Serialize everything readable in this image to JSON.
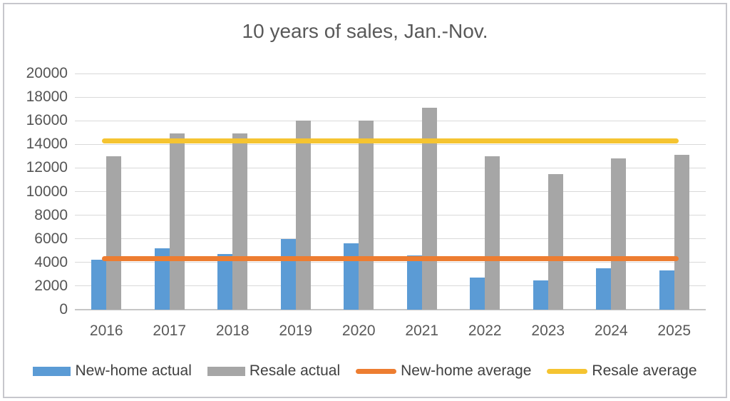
{
  "chart_data": {
    "type": "bar",
    "title": "10 years of sales, Jan.-Nov.",
    "categories": [
      "2016",
      "2017",
      "2018",
      "2019",
      "2020",
      "2021",
      "2022",
      "2023",
      "2024",
      "2025"
    ],
    "series": [
      {
        "name": "New-home actual",
        "type": "bar",
        "color": "#5B9BD5",
        "values": [
          4200,
          5200,
          4700,
          6000,
          5600,
          4600,
          2700,
          2500,
          3500,
          3300
        ]
      },
      {
        "name": "Resale actual",
        "type": "bar",
        "color": "#A6A6A6",
        "values": [
          13000,
          14900,
          14900,
          16000,
          16000,
          17100,
          13000,
          11500,
          12800,
          13100
        ]
      },
      {
        "name": "New-home average",
        "type": "line",
        "color": "#ED7D31",
        "value": 4300
      },
      {
        "name": "Resale average",
        "type": "line",
        "color": "#F5C431",
        "value": 14300
      }
    ],
    "xlabel": "",
    "ylabel": "",
    "ylim": [
      0,
      20000
    ],
    "ytick_step": 2000,
    "grid": true,
    "legend_position": "bottom"
  }
}
